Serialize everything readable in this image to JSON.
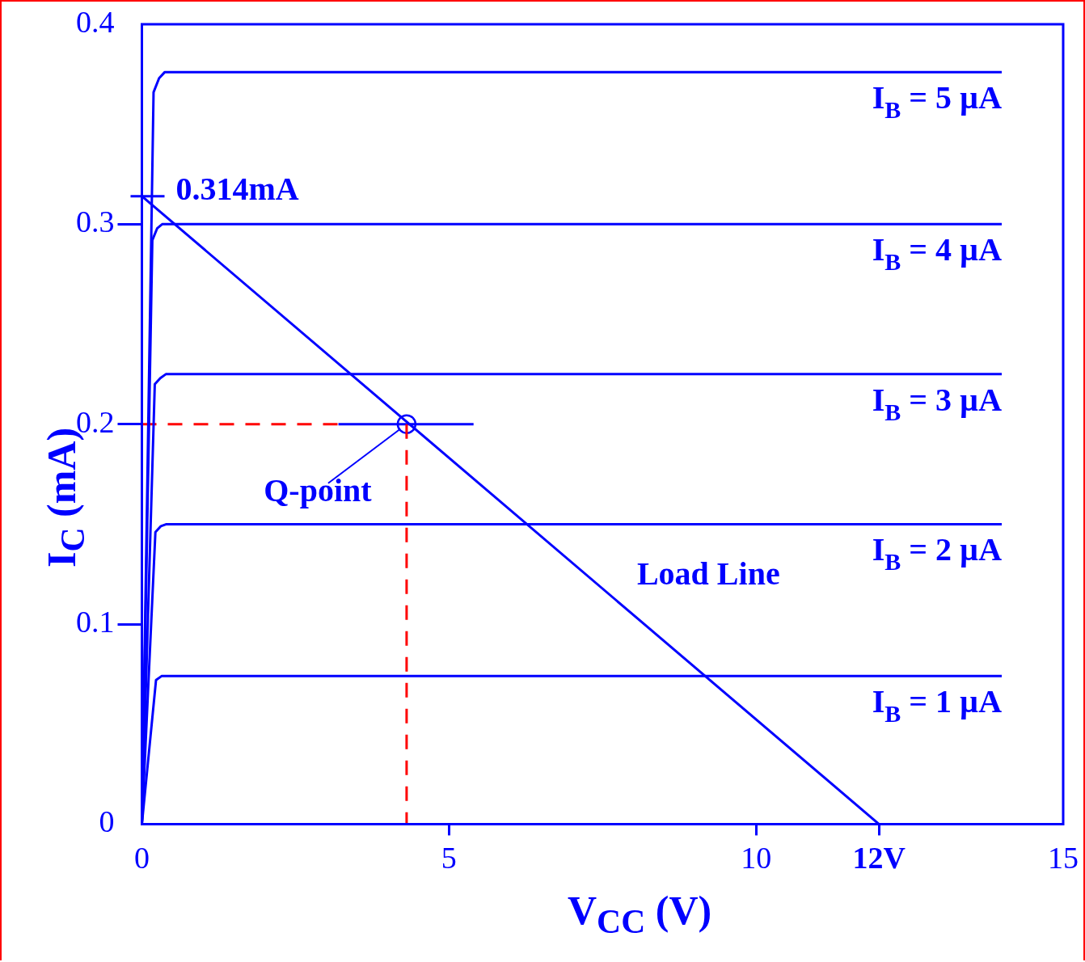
{
  "chart_data": {
    "type": "line",
    "xlabel": "V$_{CC}$ (V)",
    "ylabel": "I$_{C}$ (mA)",
    "xlim": [
      0,
      15
    ],
    "ylim": [
      0,
      0.4
    ],
    "xticks": [
      0,
      5,
      10,
      {
        "value": 12,
        "label": "12V"
      },
      15
    ],
    "yticks": [
      0,
      0.1,
      0.2,
      0.3,
      0.4
    ],
    "grid": false,
    "legend": false,
    "marker": "none",
    "line_style": "solid",
    "series": [
      {
        "name": "I$_{B}$ = 5 µA",
        "color": "#0000ff",
        "x": [
          0,
          0.19,
          0.28,
          0.37,
          14.0
        ],
        "values": [
          0,
          0.366,
          0.373,
          0.376,
          0.376
        ]
      },
      {
        "name": "I$_{B}$ = 4 µA",
        "color": "#0000ff",
        "x": [
          0,
          0.17,
          0.25,
          0.33,
          14.0
        ],
        "values": [
          0,
          0.292,
          0.298,
          0.3,
          0.3
        ]
      },
      {
        "name": "I$_{B}$ = 3 µA",
        "color": "#0000ff",
        "x": [
          0,
          0.21,
          0.3,
          0.39,
          14.0
        ],
        "values": [
          0,
          0.22,
          0.223,
          0.225,
          0.225
        ]
      },
      {
        "name": "I$_{B}$ = 2 µA",
        "color": "#0000ff",
        "x": [
          0,
          0.22,
          0.31,
          0.4,
          14.0
        ],
        "values": [
          0,
          0.146,
          0.149,
          0.15,
          0.15
        ]
      },
      {
        "name": "I$_{B}$ = 1 µA",
        "color": "#0000ff",
        "x": [
          0,
          0.23,
          0.32,
          0.4,
          14.0
        ],
        "values": [
          0,
          0.072,
          0.074,
          0.074,
          0.074
        ]
      },
      {
        "color": "#0000ff",
        "x": [
          0,
          12
        ],
        "values": [
          0.314,
          0
        ]
      },
      {
        "color": "#ff0000",
        "line_style": "dashed",
        "x": [
          0,
          3.2
        ],
        "values": [
          0.2,
          0.2
        ]
      },
      {
        "color": "#ff0000",
        "line_style": "dashed",
        "x": [
          4.31,
          4.31
        ],
        "values": [
          0.2,
          0
        ]
      },
      {
        "color": "#0000ff",
        "x": [
          3.2,
          5.4
        ],
        "values": [
          0.2,
          0.2
        ]
      },
      {
        "type": "scatter",
        "color": "#0000ff",
        "marker": "circle",
        "x": [
          4.31
        ],
        "values": [
          0.2
        ]
      }
    ],
    "annotations": [
      {
        "text": "0.314mA",
        "x": 0,
        "y": 0.314
      },
      {
        "text": "Q-point",
        "x": 4.31,
        "y": 0.2
      },
      "Load Line"
    ]
  }
}
